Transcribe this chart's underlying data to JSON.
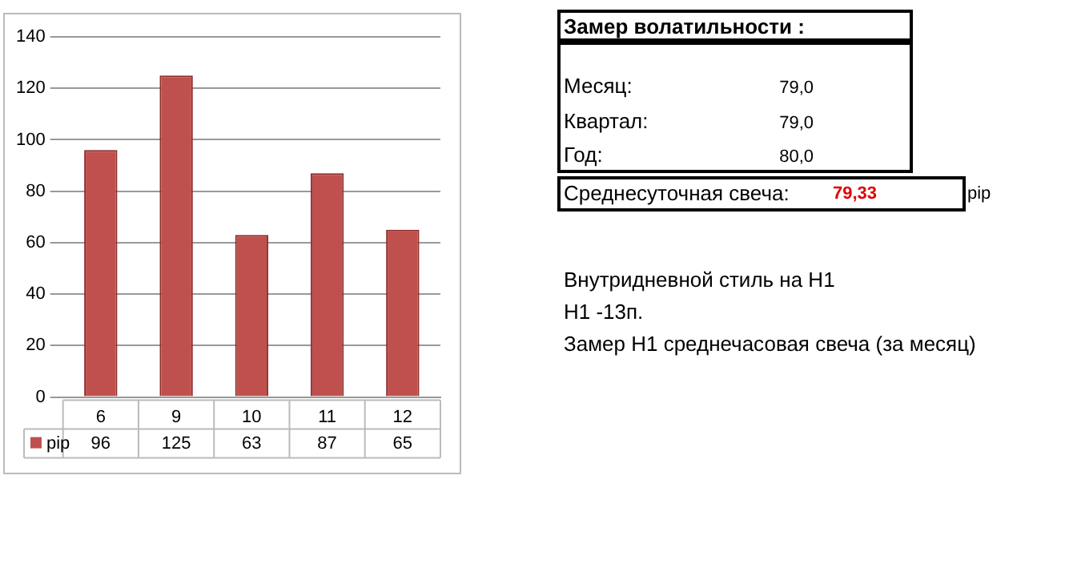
{
  "chart_data": {
    "type": "bar",
    "categories": [
      "6",
      "9",
      "10",
      "11",
      "12"
    ],
    "series": [
      {
        "name": "pip",
        "color": "#c0504d",
        "values": [
          96,
          125,
          63,
          87,
          65
        ]
      }
    ],
    "ylim": [
      0,
      140
    ],
    "yticks": [
      0,
      20,
      40,
      60,
      80,
      100,
      120,
      140
    ],
    "grid": "y",
    "legend": "bottom",
    "data_labels": true,
    "annotations": [
      "Замер  волатильности  :",
      "Месяц:",
      "79,0",
      "Квартал:",
      "79,0",
      "Год:",
      "80,0",
      "Среднесуточная свеча:",
      "79,33",
      "pip",
      "Внутридневной стиль на H1",
      "H1 -13п.",
      "Замер H1 среднечасовая свеча (за месяц)"
    ]
  }
}
